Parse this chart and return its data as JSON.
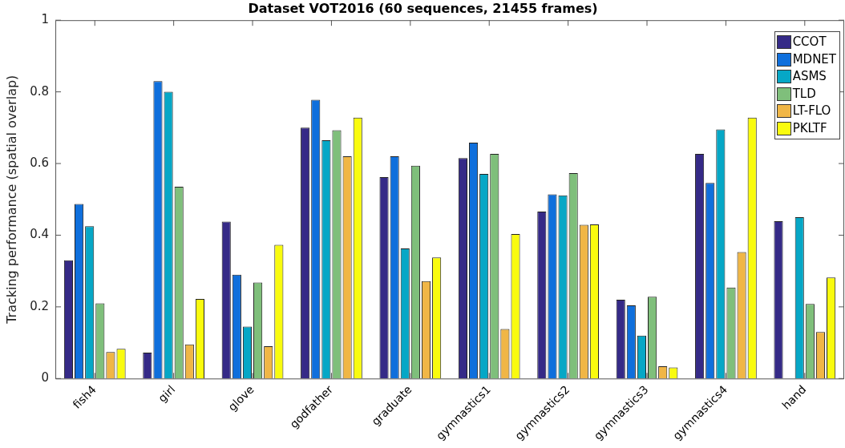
{
  "chart_data": {
    "type": "bar",
    "title": "Dataset VOT2016 (60 sequences, 21455 frames)",
    "ylabel": "Tracking performance (spatial overlap)",
    "categories": [
      "fish4",
      "girl",
      "glove",
      "godfather",
      "graduate",
      "gymnastics1",
      "gymnastics2",
      "gymnastics3",
      "gymnastics4",
      "hand"
    ],
    "series": [
      {
        "name": "CCOT",
        "color": "#352a87",
        "values": [
          0.33,
          0.072,
          0.438,
          0.7,
          0.562,
          0.615,
          0.466,
          0.22,
          0.627,
          0.439
        ]
      },
      {
        "name": "MDNET",
        "color": "#0f6fdc",
        "values": [
          0.487,
          0.83,
          0.29,
          0.778,
          0.62,
          0.658,
          0.514,
          0.204,
          0.546,
          null
        ]
      },
      {
        "name": "ASMS",
        "color": "#06a7c6",
        "values": [
          0.425,
          0.8,
          0.145,
          0.665,
          0.363,
          0.571,
          0.511,
          0.12,
          0.695,
          0.45
        ]
      },
      {
        "name": "TLD",
        "color": "#7fbf7b",
        "values": [
          0.21,
          0.535,
          0.268,
          0.693,
          0.594,
          0.627,
          0.573,
          0.228,
          0.254,
          0.208
        ]
      },
      {
        "name": "LT-FLO",
        "color": "#f0b646",
        "values": [
          0.074,
          0.095,
          0.09,
          0.62,
          0.272,
          0.138,
          0.429,
          0.034,
          0.353,
          0.13
        ]
      },
      {
        "name": "PKLTF",
        "color": "#f9fb0e",
        "values": [
          0.083,
          0.222,
          0.373,
          0.728,
          0.338,
          0.403,
          0.43,
          0.031,
          0.728,
          0.282
        ]
      }
    ],
    "ylim": [
      0,
      1
    ],
    "yticks": [
      0,
      0.2,
      0.4,
      0.6,
      0.8,
      1
    ],
    "grid": false,
    "legend": "top right"
  }
}
